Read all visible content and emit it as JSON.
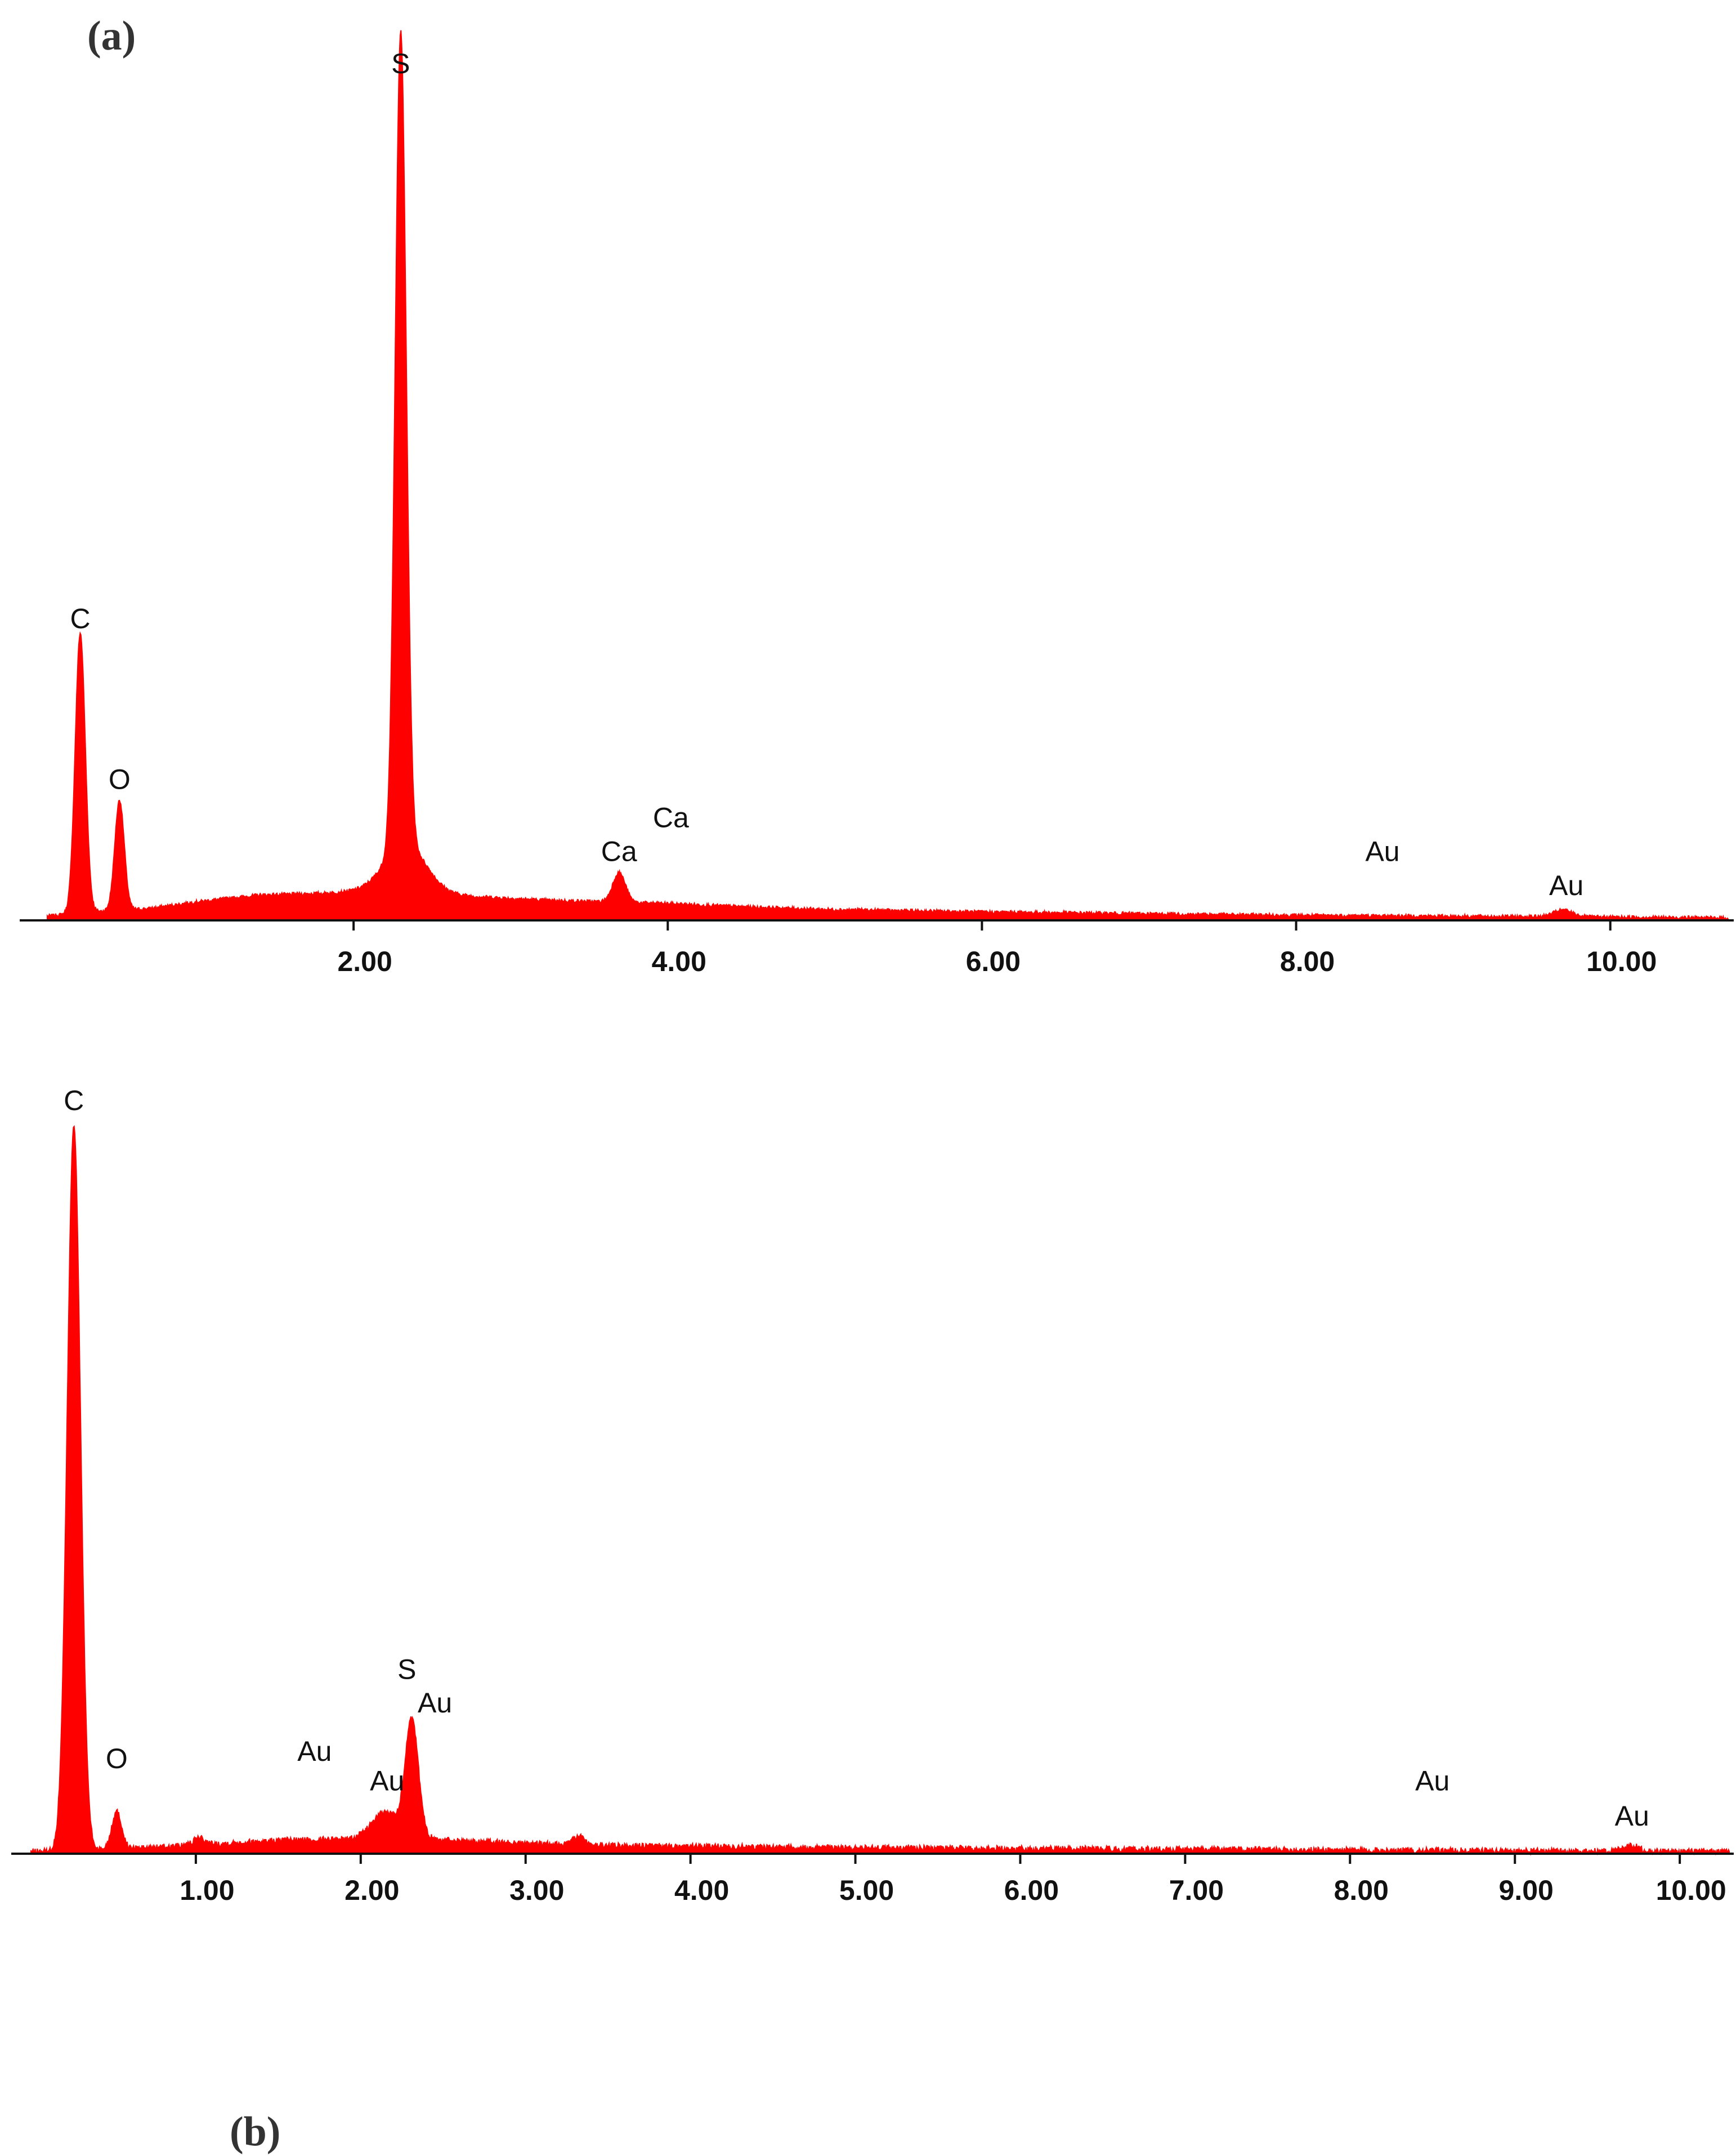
{
  "colors": {
    "spectrum": "#ff0000",
    "axis": "#111111"
  },
  "chart_data": [
    {
      "type": "area",
      "panel_label": "(a)",
      "title": "",
      "xlabel": "",
      "ylabel": "",
      "xlim": [
        0,
        10.75
      ],
      "ylim": [
        0,
        1.0
      ],
      "grid": false,
      "x_ticks": [
        {
          "value": 2,
          "label": "2.00"
        },
        {
          "value": 4,
          "label": "4.00"
        },
        {
          "value": 6,
          "label": "6.00"
        },
        {
          "value": 8,
          "label": "8.00"
        },
        {
          "value": 10,
          "label": "10.00"
        }
      ],
      "baseline": [
        [
          0.05,
          0.005
        ],
        [
          0.3,
          0.01
        ],
        [
          0.7,
          0.014
        ],
        [
          1.0,
          0.022
        ],
        [
          1.4,
          0.03
        ],
        [
          1.8,
          0.032
        ],
        [
          2.0,
          0.034
        ],
        [
          2.3,
          0.036
        ],
        [
          2.6,
          0.03
        ],
        [
          3.2,
          0.024
        ],
        [
          3.6,
          0.022
        ],
        [
          4.0,
          0.02
        ],
        [
          4.5,
          0.016
        ],
        [
          5.0,
          0.013
        ],
        [
          6.0,
          0.01
        ],
        [
          7.0,
          0.008
        ],
        [
          8.0,
          0.006
        ],
        [
          9.0,
          0.005
        ],
        [
          10.0,
          0.004
        ],
        [
          10.75,
          0.003
        ]
      ],
      "peaks": [
        {
          "center": 0.26,
          "height": 0.33,
          "width": 0.032
        },
        {
          "center": 0.51,
          "height": 0.13,
          "width": 0.03
        },
        {
          "center": 2.3,
          "height": 0.96,
          "width": 0.035
        },
        {
          "center": 2.33,
          "height": 0.055,
          "width": 0.13
        },
        {
          "center": 3.69,
          "height": 0.035,
          "width": 0.04
        },
        {
          "center": 9.7,
          "height": 0.008,
          "width": 0.06
        }
      ],
      "noise": 0.002,
      "annotations": [
        {
          "label": "C",
          "x": 0.26,
          "y": 0.345
        },
        {
          "label": "O",
          "x": 0.51,
          "y": 0.155
        },
        {
          "label": "S",
          "x": 2.3,
          "y": 1.0
        },
        {
          "label": "Ca",
          "x": 3.69,
          "y": 0.07
        },
        {
          "label": "Ca",
          "x": 4.02,
          "y": 0.11
        },
        {
          "label": "Au",
          "x": 8.55,
          "y": 0.07
        },
        {
          "label": "Au",
          "x": 9.72,
          "y": 0.03
        }
      ]
    },
    {
      "type": "area",
      "panel_label": "(b)",
      "title": "",
      "xlabel": "",
      "ylabel": "",
      "xlim": [
        0,
        10.3
      ],
      "ylim": [
        0,
        1.0
      ],
      "grid": false,
      "x_ticks": [
        {
          "value": 1,
          "label": "1.00"
        },
        {
          "value": 2,
          "label": "2.00"
        },
        {
          "value": 3,
          "label": "3.00"
        },
        {
          "value": 4,
          "label": "4.00"
        },
        {
          "value": 5,
          "label": "5.00"
        },
        {
          "value": 6,
          "label": "6.00"
        },
        {
          "value": 7,
          "label": "7.00"
        },
        {
          "value": 8,
          "label": "8.00"
        },
        {
          "value": 9,
          "label": "9.00"
        },
        {
          "value": 10,
          "label": "10.00"
        }
      ],
      "baseline": [
        [
          0.0,
          0.003
        ],
        [
          0.7,
          0.008
        ],
        [
          1.0,
          0.012
        ],
        [
          1.5,
          0.018
        ],
        [
          1.9,
          0.02
        ],
        [
          2.3,
          0.022
        ],
        [
          2.6,
          0.018
        ],
        [
          3.0,
          0.014
        ],
        [
          3.5,
          0.011
        ],
        [
          4.0,
          0.01
        ],
        [
          5.0,
          0.008
        ],
        [
          6.0,
          0.007
        ],
        [
          7.0,
          0.006
        ],
        [
          8.0,
          0.005
        ],
        [
          9.0,
          0.004
        ],
        [
          10.3,
          0.003
        ]
      ],
      "peaks": [
        {
          "center": 0.26,
          "height": 0.975,
          "width": 0.04
        },
        {
          "center": 0.52,
          "height": 0.05,
          "width": 0.03
        },
        {
          "center": 1.02,
          "height": 0.01,
          "width": 0.03
        },
        {
          "center": 2.15,
          "height": 0.035,
          "width": 0.08
        },
        {
          "center": 2.31,
          "height": 0.155,
          "width": 0.04
        },
        {
          "center": 3.32,
          "height": 0.012,
          "width": 0.03
        },
        {
          "center": 9.7,
          "height": 0.008,
          "width": 0.05
        }
      ],
      "noise": 0.004,
      "annotations": [
        {
          "label": "C",
          "x": 0.26,
          "y": 1.0
        },
        {
          "label": "O",
          "x": 0.52,
          "y": 0.115
        },
        {
          "label": "Au",
          "x": 1.72,
          "y": 0.125
        },
        {
          "label": "Au",
          "x": 2.16,
          "y": 0.085
        },
        {
          "label": "S",
          "x": 2.28,
          "y": 0.235
        },
        {
          "label": "Au",
          "x": 2.45,
          "y": 0.19
        },
        {
          "label": "Au",
          "x": 8.5,
          "y": 0.085
        },
        {
          "label": "Au",
          "x": 9.71,
          "y": 0.038
        }
      ]
    }
  ]
}
